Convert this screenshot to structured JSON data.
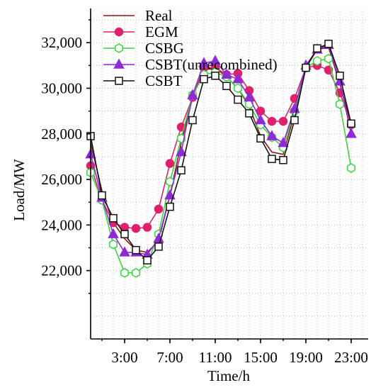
{
  "chart_data": {
    "type": "line",
    "xlabel": "Time/h",
    "ylabel": "Load/MW",
    "xlim": [
      0,
      24
    ],
    "ylim": [
      19000,
      33500
    ],
    "x_ticks": [
      3,
      7,
      11,
      15,
      19,
      23
    ],
    "x_tick_labels": [
      "3:00",
      "7:00",
      "11:00",
      "15:00",
      "19:00",
      "23:00"
    ],
    "y_ticks": [
      22000,
      24000,
      26000,
      28000,
      30000,
      32000
    ],
    "y_tick_labels": [
      "22,000",
      "24,000",
      "26,000",
      "28,000",
      "30,000",
      "32,000"
    ],
    "legend_position": "top-left",
    "x": [
      0,
      1,
      2,
      3,
      4,
      5,
      6,
      7,
      8,
      9,
      10,
      11,
      12,
      13,
      14,
      15,
      16,
      17,
      18,
      19,
      20,
      21,
      22,
      23
    ],
    "series": [
      {
        "name": "Real",
        "color": "#8b1a1a",
        "marker": "none",
        "values": [
          27600,
          25500,
          24100,
          23400,
          22900,
          22800,
          23300,
          25300,
          27600,
          29600,
          30800,
          30900,
          30500,
          30000,
          29200,
          27900,
          27200,
          27100,
          28900,
          30900,
          31700,
          31800,
          30200,
          28400
        ]
      },
      {
        "name": "EGM",
        "color": "#e0206a",
        "marker": "circle",
        "values": [
          26600,
          25100,
          24100,
          23900,
          23850,
          23900,
          24700,
          26700,
          28300,
          29600,
          30900,
          30900,
          30600,
          30650,
          29900,
          29000,
          28550,
          28550,
          29550,
          30900,
          31000,
          30800,
          29800,
          28400
        ]
      },
      {
        "name": "CSBG",
        "color": "#3ed23e",
        "marker": "hexagon",
        "values": [
          26300,
          25100,
          23150,
          21900,
          21900,
          22300,
          23600,
          25900,
          27800,
          29700,
          30600,
          30700,
          30500,
          30000,
          29300,
          28400,
          27850,
          27400,
          29000,
          30900,
          31200,
          31300,
          29300,
          26500
        ]
      },
      {
        "name": "CSBT(unrecombined)",
        "color": "#8e2ad6",
        "marker": "triangle",
        "values": [
          27100,
          25200,
          23600,
          22800,
          22800,
          22700,
          23400,
          25300,
          27200,
          29700,
          31100,
          31200,
          30600,
          30400,
          29600,
          28600,
          27900,
          27600,
          29100,
          31000,
          31700,
          31900,
          30300,
          28000
        ]
      },
      {
        "name": "CSBT",
        "color": "#111111",
        "marker": "square",
        "values": [
          27900,
          25300,
          24300,
          23600,
          22900,
          22450,
          23050,
          24800,
          26400,
          28600,
          30400,
          30550,
          30100,
          29500,
          28900,
          27800,
          26900,
          26850,
          28600,
          30900,
          31750,
          31950,
          30550,
          28450
        ]
      }
    ]
  }
}
